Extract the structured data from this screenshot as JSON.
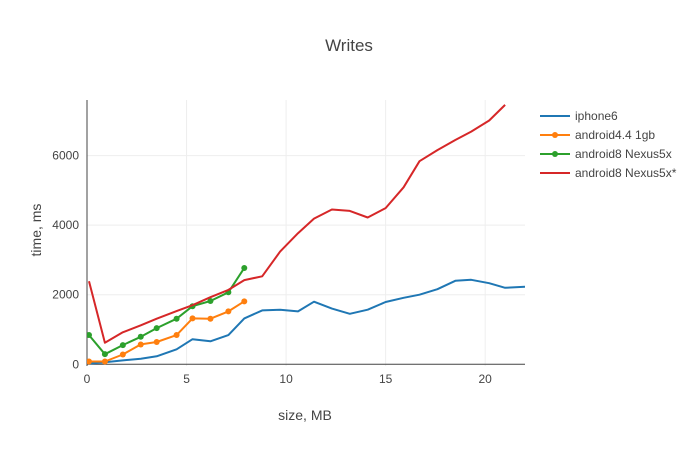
{
  "chart_data": {
    "type": "line",
    "title": "Writes",
    "xlabel": "size, MB",
    "ylabel": "time, ms",
    "xlim": [
      0,
      22
    ],
    "ylim": [
      -50,
      7600
    ],
    "x_ticks": [
      0,
      5,
      10,
      15,
      20
    ],
    "y_ticks": [
      0,
      2000,
      4000,
      6000
    ],
    "grid": true,
    "legend_position": "top-right",
    "series": [
      {
        "name": "iphone6",
        "color": "#1f77b4",
        "markers": false,
        "x": [
          0.1,
          0.9,
          1.8,
          2.7,
          3.5,
          4.5,
          5.3,
          6.2,
          7.1,
          7.9,
          8.8,
          9.7,
          10.6,
          11.4,
          12.3,
          13.2,
          14.1,
          15.0,
          15.9,
          16.7,
          17.6,
          18.5,
          19.3,
          20.2,
          21.0,
          22.0
        ],
        "y": [
          20,
          60,
          110,
          160,
          230,
          430,
          720,
          660,
          840,
          1320,
          1550,
          1570,
          1520,
          1800,
          1600,
          1450,
          1570,
          1790,
          1910,
          2000,
          2160,
          2400,
          2430,
          2330,
          2200,
          2230
        ]
      },
      {
        "name": "android4.4 1gb",
        "color": "#ff7f0e",
        "markers": true,
        "x": [
          0.1,
          0.9,
          1.8,
          2.7,
          3.5,
          4.5,
          5.3,
          6.2,
          7.1,
          7.9
        ],
        "y": [
          80,
          80,
          280,
          570,
          640,
          840,
          1320,
          1310,
          1520,
          1810
        ]
      },
      {
        "name": "android8 Nexus5x",
        "color": "#2ca02c",
        "markers": true,
        "x": [
          0.1,
          0.9,
          1.8,
          2.7,
          3.5,
          4.5,
          5.3,
          6.2,
          7.1,
          7.9
        ],
        "y": [
          840,
          290,
          550,
          790,
          1040,
          1310,
          1670,
          1820,
          2070,
          2770
        ]
      },
      {
        "name": "android8 Nexus5x*",
        "color": "#d62728",
        "markers": false,
        "x": [
          0.1,
          0.9,
          1.8,
          2.7,
          3.5,
          4.5,
          5.3,
          6.2,
          7.1,
          7.9,
          8.8,
          9.7,
          10.6,
          11.4,
          12.3,
          13.2,
          14.1,
          15.0,
          15.9,
          16.7,
          17.6,
          18.5,
          19.3,
          20.2,
          21.0
        ],
        "y": [
          2390,
          620,
          920,
          1120,
          1310,
          1530,
          1700,
          1930,
          2140,
          2420,
          2530,
          3240,
          3770,
          4190,
          4450,
          4410,
          4220,
          4490,
          5090,
          5840,
          6160,
          6450,
          6690,
          7010,
          7460
        ]
      }
    ]
  }
}
